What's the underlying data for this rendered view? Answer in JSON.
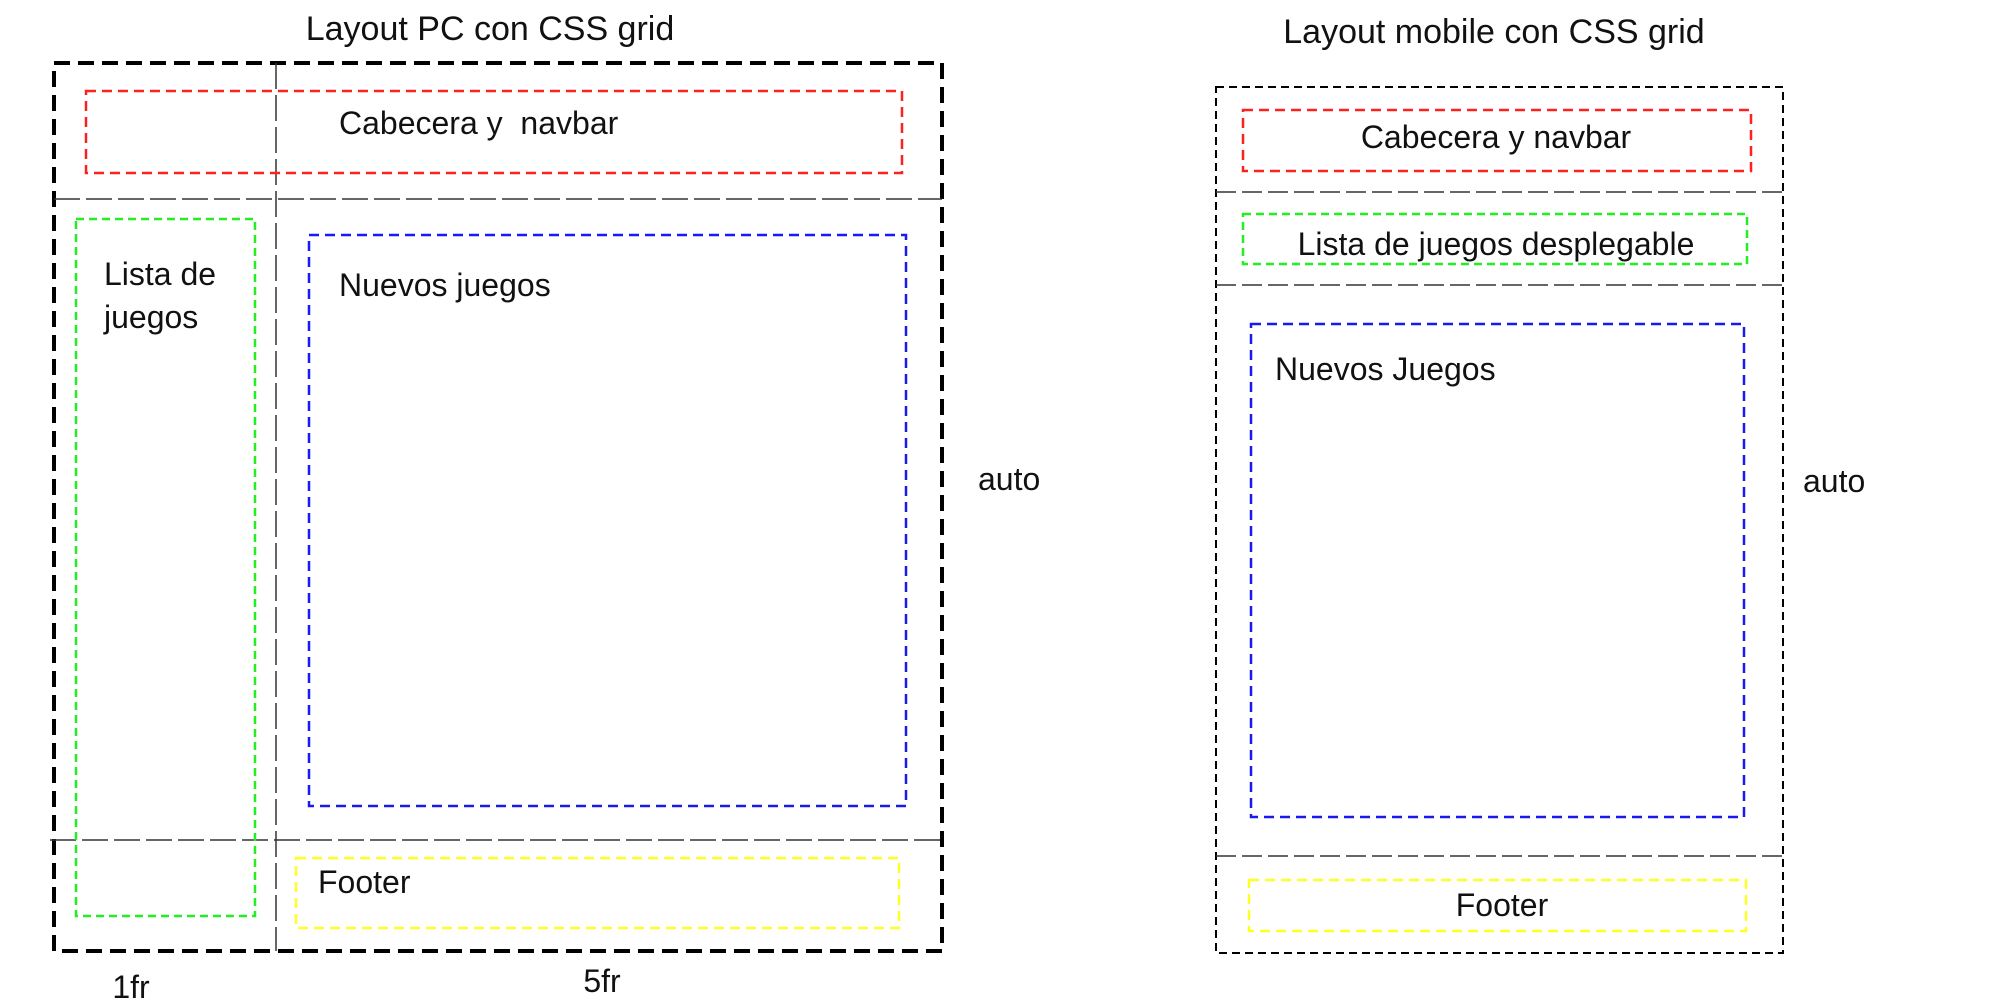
{
  "pc": {
    "title": "Layout PC con CSS grid",
    "regions": {
      "header": {
        "label": "Cabecera y  navbar",
        "color": "#ff2020"
      },
      "sidebar": {
        "label_line1": "Lista de",
        "label_line2": "juegos",
        "color": "#22ee22"
      },
      "main": {
        "label": "Nuevos juegos",
        "color": "#1a1aee"
      },
      "footer": {
        "label": "Footer",
        "color": "#ffff22"
      }
    },
    "row_size_label": "auto",
    "col_labels": [
      "1fr",
      "5fr"
    ]
  },
  "mobile": {
    "title": "Layout mobile con CSS grid",
    "regions": {
      "header": {
        "label": "Cabecera y navbar",
        "color": "#ff2020"
      },
      "list": {
        "label": "Lista de juegos desplegable",
        "color": "#22ee22"
      },
      "main": {
        "label": "Nuevos Juegos",
        "color": "#1a1aee"
      },
      "footer": {
        "label": "Footer",
        "color": "#ffff22"
      }
    },
    "row_size_label": "auto"
  }
}
